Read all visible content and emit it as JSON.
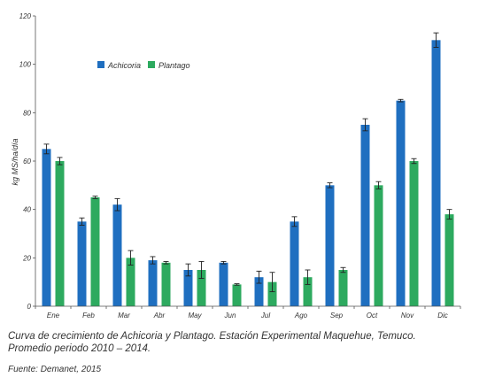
{
  "chart_data": {
    "type": "bar",
    "categories": [
      "Ene",
      "Feb",
      "Mar",
      "Abr",
      "May",
      "Jun",
      "Jul",
      "Ago",
      "Sep",
      "Oct",
      "Nov",
      "Dic"
    ],
    "series": [
      {
        "name": "Achicoria",
        "color": "#1f6fc0",
        "values": [
          65,
          35,
          42,
          19,
          15,
          18,
          12,
          35,
          50,
          75,
          85,
          110
        ],
        "error": [
          2,
          1.5,
          2.5,
          1.5,
          2.5,
          0.5,
          2.5,
          2,
          1,
          2.5,
          0.5,
          3
        ]
      },
      {
        "name": "Plantago",
        "color": "#2daa5f",
        "values": [
          60,
          45,
          20,
          18,
          15,
          9,
          10,
          12,
          15,
          50,
          60,
          38
        ],
        "error": [
          1.5,
          0.5,
          3,
          0.5,
          3.5,
          0.3,
          4,
          3,
          1,
          1.5,
          1,
          2
        ]
      }
    ],
    "yticks": [
      "0",
      "20",
      "40",
      "60",
      "80",
      "100",
      "120"
    ],
    "ylim": [
      0,
      120
    ],
    "ylabel": "kg MS/ha/día",
    "xlabel": "",
    "legend_position": "top-left"
  },
  "caption": {
    "line1": "Curva de crecimiento de Achicoria y Plantago. Estación Experimental Maquehue, Temuco.",
    "line2": "Promedio periodo 2010 – 2014."
  },
  "source": "Fuente: Demanet, 2015"
}
